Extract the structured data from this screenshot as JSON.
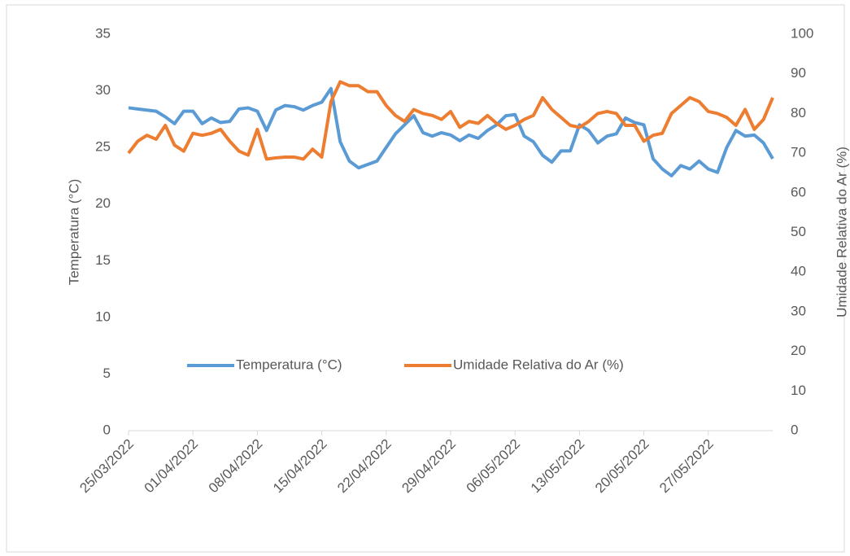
{
  "chart_data": {
    "type": "line",
    "ylabel": "Temperatura (°C)",
    "y2label": "Umidade Relativa do Ar (%)",
    "x": [
      "25/03/2022",
      "26/03/2022",
      "27/03/2022",
      "28/03/2022",
      "29/03/2022",
      "30/03/2022",
      "31/03/2022",
      "01/04/2022",
      "02/04/2022",
      "03/04/2022",
      "04/04/2022",
      "05/04/2022",
      "06/04/2022",
      "07/04/2022",
      "08/04/2022",
      "09/04/2022",
      "10/04/2022",
      "11/04/2022",
      "12/04/2022",
      "13/04/2022",
      "14/04/2022",
      "15/04/2022",
      "16/04/2022",
      "17/04/2022",
      "18/04/2022",
      "19/04/2022",
      "20/04/2022",
      "21/04/2022",
      "22/04/2022",
      "23/04/2022",
      "24/04/2022",
      "25/04/2022",
      "26/04/2022",
      "27/04/2022",
      "28/04/2022",
      "29/04/2022",
      "30/04/2022",
      "01/05/2022",
      "02/05/2022",
      "03/05/2022",
      "04/05/2022",
      "05/05/2022",
      "06/05/2022",
      "07/05/2022",
      "08/05/2022",
      "09/05/2022",
      "10/05/2022",
      "11/05/2022",
      "12/05/2022",
      "13/05/2022",
      "14/05/2022",
      "15/05/2022",
      "16/05/2022",
      "17/05/2022",
      "18/05/2022",
      "19/05/2022",
      "20/05/2022",
      "21/05/2022",
      "22/05/2022",
      "23/05/2022",
      "24/05/2022",
      "25/05/2022",
      "26/05/2022",
      "27/05/2022",
      "28/05/2022",
      "29/05/2022",
      "30/05/2022",
      "31/05/2022",
      "01/06/2022",
      "02/06/2022",
      "03/06/2022"
    ],
    "xlim": [
      "25/03/2022",
      "03/06/2022"
    ],
    "xticks": [
      "25/03/2022",
      "01/04/2022",
      "08/04/2022",
      "15/04/2022",
      "22/04/2022",
      "29/04/2022",
      "06/05/2022",
      "13/05/2022",
      "20/05/2022",
      "27/05/2022"
    ],
    "ylim": [
      0,
      35
    ],
    "yticks": [
      0,
      5,
      10,
      15,
      20,
      25,
      30,
      35
    ],
    "y2lim": [
      0,
      100
    ],
    "y2ticks": [
      0,
      10,
      20,
      30,
      40,
      50,
      60,
      70,
      80,
      90,
      100
    ],
    "legend": "center",
    "series": [
      {
        "name": "Temperatura (°C)",
        "color": "#5b9bd5",
        "values": [
          28.5,
          28.4,
          28.3,
          28.2,
          27.7,
          27.1,
          28.2,
          28.2,
          27.1,
          27.6,
          27.2,
          27.3,
          28.4,
          28.5,
          28.2,
          26.5,
          28.3,
          28.7,
          28.6,
          28.3,
          28.7,
          29.0,
          30.2,
          25.5,
          23.8,
          23.2,
          23.5,
          23.8,
          25,
          26.2,
          27,
          27.8,
          26.3,
          26,
          26.3,
          26.1,
          25.6,
          26.1,
          25.8,
          26.5,
          27,
          27.8,
          27.9,
          26,
          25.5,
          24.3,
          23.7,
          24.7,
          24.7,
          27.0,
          26.5,
          25.4,
          26,
          26.2,
          27.6,
          27.2,
          27,
          24,
          23.1,
          22.5,
          23.4,
          23.1,
          23.8,
          23.1,
          22.8,
          25,
          26.5,
          26,
          26.1,
          25.4,
          24
        ]
      },
      {
        "name": "Umidade Relativa do Ar (%)",
        "color": "#ed7d31",
        "axis": "y2",
        "values": [
          70,
          73,
          74.5,
          73.5,
          77,
          72,
          70.5,
          75,
          74.5,
          75,
          76,
          73,
          70.5,
          69.5,
          76,
          68.5,
          68.8,
          69,
          69,
          68.5,
          71,
          69,
          83,
          88,
          87,
          87,
          85.5,
          85.5,
          82,
          79.5,
          78,
          81,
          80,
          79.5,
          78.5,
          80.5,
          76.5,
          78,
          77.5,
          79.5,
          77.5,
          76,
          77,
          78.5,
          79.5,
          84,
          81,
          79,
          77,
          76.5,
          78,
          80,
          80.5,
          80,
          77,
          77,
          73,
          74.5,
          75,
          80,
          82,
          84,
          83,
          80.5,
          80,
          79,
          77,
          81,
          76,
          78.5,
          84
        ]
      }
    ]
  }
}
